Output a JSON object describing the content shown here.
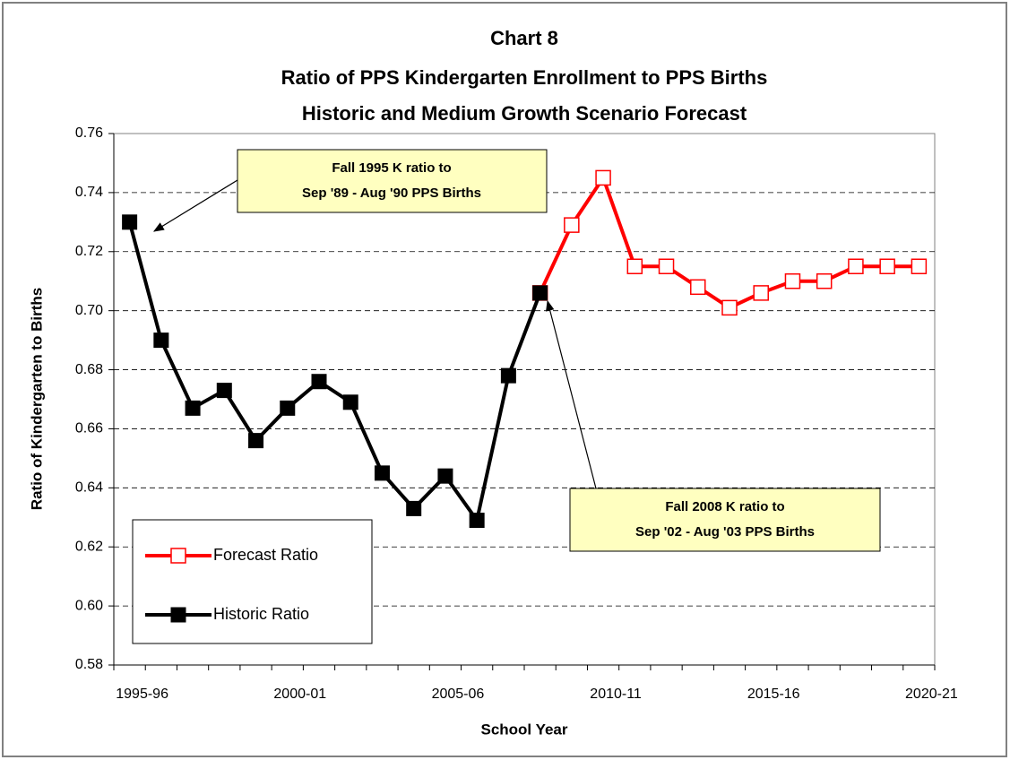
{
  "chart_data": {
    "type": "line",
    "title": [
      "Chart 8",
      "Ratio of PPS Kindergarten Enrollment to PPS Births",
      "Historic and Medium Growth Scenario Forecast"
    ],
    "x_label": "School Year",
    "y_label": "Ratio of Kindergarten to Births",
    "categories": [
      "1995-96",
      null,
      null,
      null,
      null,
      "2000-01",
      null,
      null,
      null,
      null,
      "2005-06",
      null,
      null,
      null,
      null,
      "2010-11",
      null,
      null,
      null,
      null,
      "2015-16",
      null,
      null,
      null,
      null,
      "2020-21"
    ],
    "series": [
      {
        "name": "Forecast Ratio",
        "color": "#ff0000",
        "marker": "hollow-square",
        "values": [
          null,
          null,
          null,
          null,
          null,
          null,
          null,
          null,
          null,
          null,
          null,
          null,
          null,
          0.706,
          0.729,
          0.745,
          0.715,
          0.715,
          0.708,
          0.701,
          0.706,
          0.71,
          0.71,
          0.715,
          0.715,
          0.715
        ]
      },
      {
        "name": "Historic Ratio",
        "color": "#000000",
        "marker": "filled-square",
        "values": [
          0.73,
          0.69,
          0.667,
          0.673,
          0.656,
          0.667,
          0.676,
          0.669,
          0.645,
          0.633,
          0.644,
          0.629,
          0.678,
          0.706,
          null,
          null,
          null,
          null,
          null,
          null,
          null,
          null,
          null,
          null,
          null,
          null
        ]
      }
    ],
    "ylim": [
      0.58,
      0.76
    ],
    "yticks": [
      {
        "value": 0.58,
        "label": "0.58"
      },
      {
        "value": 0.6,
        "label": "0.60"
      },
      {
        "value": 0.62,
        "label": "0.62"
      },
      {
        "value": 0.64,
        "label": "0.64"
      },
      {
        "value": 0.66,
        "label": "0.66"
      },
      {
        "value": 0.68,
        "label": "0.68"
      },
      {
        "value": 0.7,
        "label": "0.70"
      },
      {
        "value": 0.72,
        "label": "0.72"
      },
      {
        "value": 0.74,
        "label": "0.74"
      },
      {
        "value": 0.76,
        "label": "0.76"
      }
    ],
    "grid": true,
    "legend": "lower-left",
    "annotations": [
      {
        "lines": [
          "Fall 1995 K ratio to",
          "Sep '89 - Aug '90 PPS Births"
        ]
      },
      {
        "lines": [
          "Fall 2008 K ratio to",
          "Sep '02 - Aug '03 PPS Births"
        ]
      }
    ]
  }
}
